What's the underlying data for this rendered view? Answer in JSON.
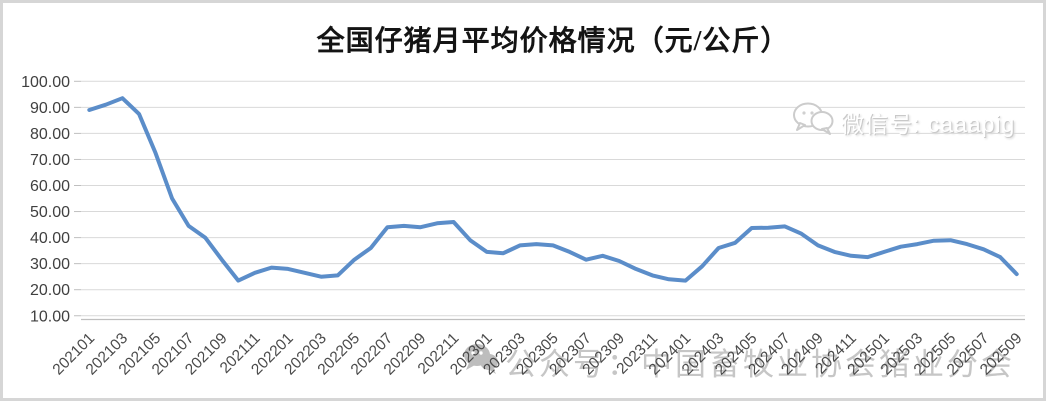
{
  "title": "全国仔猪月平均价格情况（元/公斤）",
  "watermark_top_right": {
    "icon": "wechat-icon",
    "text": "微信号: caaapig"
  },
  "watermark_bottom": {
    "icon": "wechat-icon",
    "text": "公众号：中国畜牧业协会猪业分会"
  },
  "chart_data": {
    "type": "line",
    "title": "全国仔猪月平均价格情况（元/公斤）",
    "x": [
      "202101",
      "202102",
      "202103",
      "202104",
      "202105",
      "202106",
      "202107",
      "202108",
      "202109",
      "202110",
      "202111",
      "202112",
      "202201",
      "202202",
      "202203",
      "202204",
      "202205",
      "202206",
      "202207",
      "202208",
      "202209",
      "202210",
      "202211",
      "202212",
      "202301",
      "202302",
      "202303",
      "202304",
      "202305",
      "202306",
      "202307",
      "202308",
      "202309",
      "202310",
      "202311",
      "202312",
      "202401",
      "202402",
      "202403",
      "202404",
      "202405",
      "202406",
      "202407",
      "202408",
      "202409",
      "202410",
      "202411",
      "202412",
      "202501",
      "202502",
      "202503",
      "202504",
      "202505",
      "202506",
      "202507",
      "202508",
      "202509"
    ],
    "values": [
      89,
      91,
      93.5,
      87.5,
      72.5,
      55,
      44.5,
      40,
      31.5,
      23.5,
      26.5,
      28.5,
      28,
      26.5,
      25,
      25.5,
      31.5,
      36,
      44,
      44.5,
      44,
      45.5,
      46,
      39,
      34.5,
      34,
      37,
      37.5,
      37,
      34.5,
      31.5,
      33,
      31,
      28,
      25.5,
      24,
      23.5,
      29,
      36,
      38,
      43.7,
      43.8,
      44.3,
      41.5,
      37,
      34.5,
      33,
      32.5,
      34.5,
      36.5,
      37.5,
      38.8,
      39,
      37.5,
      35.5,
      32.5,
      26
    ],
    "xlabel": "",
    "ylabel": "",
    "ylim": [
      10,
      100
    ],
    "y_tick_step": 10,
    "y_tick_labels": [
      "100.00",
      "90.00",
      "80.00",
      "70.00",
      "60.00",
      "50.00",
      "40.00",
      "30.00",
      "20.00",
      "10.00"
    ],
    "x_tick_labels": [
      "202101",
      "202103",
      "202105",
      "202107",
      "202109",
      "202111",
      "202201",
      "202203",
      "202205",
      "202207",
      "202209",
      "202211",
      "202301",
      "202303",
      "202305",
      "202307",
      "202309",
      "202311",
      "202401",
      "202403",
      "202405",
      "202407",
      "202409",
      "202411",
      "202501",
      "202503",
      "202505",
      "202507",
      "202509"
    ],
    "grid": "horizontal-only",
    "legend": "none",
    "line_color": "#5b8dc9",
    "grid_color": "#d9d9d9",
    "axis_line_color": "#bfbfbf",
    "tick_label_color": "#4a4a4a"
  }
}
